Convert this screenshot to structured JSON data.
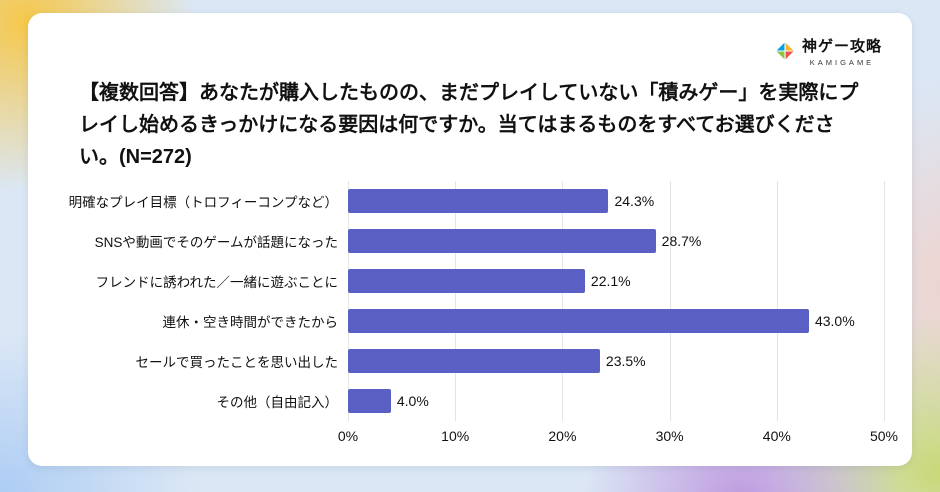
{
  "logo": {
    "brand": "神ゲー攻略",
    "sub": "KAMIGAME",
    "icon_colors": [
      "#f7b52c",
      "#ea5550",
      "#8cc63f",
      "#00a0e9"
    ]
  },
  "title": "【複数回答】あなたが購入したものの、まだプレイしていない「積みゲー」を実際にプレイし始めるきっかけになる要因は何ですか。当てはまるものをすべてお選びください。(N=272)",
  "chart_data": {
    "type": "bar",
    "orientation": "horizontal",
    "title": "【複数回答】あなたが購入したものの、まだプレイしていない「積みゲー」を実際にプレイし始めるきっかけになる要因は何ですか。当てはまるものをすべてお選びください。(N=272)",
    "categories": [
      "明確なプレイ目標（トロフィーコンプなど）",
      "SNSや動画でそのゲームが話題になった",
      "フレンドに誘われた／一緒に遊ぶことに",
      "連休・空き時間ができたから",
      "セールで買ったことを思い出した",
      "その他（自由記入）"
    ],
    "values": [
      24.3,
      28.7,
      22.1,
      43.0,
      23.5,
      4.0
    ],
    "value_labels": [
      "24.3%",
      "28.7%",
      "22.1%",
      "43.0%",
      "23.5%",
      "4.0%"
    ],
    "x_ticks": [
      "0%",
      "10%",
      "20%",
      "30%",
      "40%",
      "50%"
    ],
    "xlim": [
      0,
      50
    ],
    "xlabel": "",
    "ylabel": "",
    "grid": true,
    "legend": "none",
    "bar_color": "#5a5fc4"
  }
}
